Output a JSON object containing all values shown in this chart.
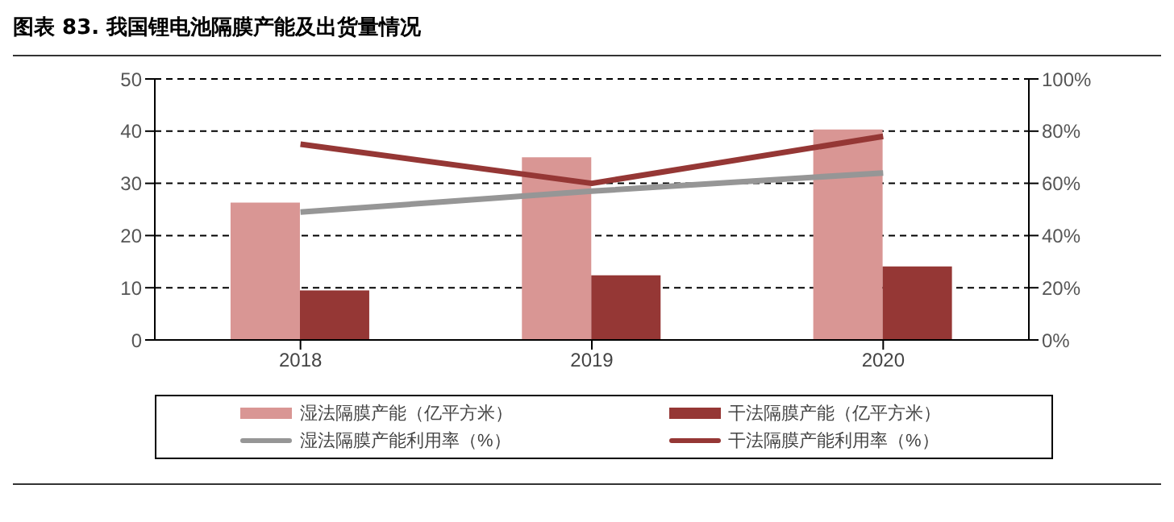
{
  "chart_data": {
    "type": "bar",
    "title": "图表 83. 我国锂电池隔膜产能及出货量情况",
    "categories": [
      "2018",
      "2019",
      "2020"
    ],
    "series": [
      {
        "name": "湿法隔膜产能（亿平方米）",
        "color": "#d99694",
        "values": [
          26.3,
          35,
          40.3
        ]
      },
      {
        "name": "干法隔膜产能（亿平方米）",
        "color": "#953735",
        "values": [
          9.5,
          12.4,
          14.1
        ]
      },
      {
        "name": "湿法隔膜产能利用率（%）",
        "type": "line",
        "axis": "y2",
        "color": "#969696",
        "values": [
          49,
          57,
          64
        ]
      },
      {
        "name": "干法隔膜产能利用率（%）",
        "type": "line",
        "axis": "y2",
        "color": "#953735",
        "values": [
          75,
          60,
          78
        ]
      }
    ],
    "ylim": [
      0,
      50
    ],
    "yticks": [
      0,
      10,
      20,
      30,
      40,
      50
    ],
    "y2lim": [
      0,
      100
    ],
    "y2ticks": [
      {
        "value": 0,
        "label": "0%"
      },
      {
        "value": 20,
        "label": "20%"
      },
      {
        "value": 40,
        "label": "40%"
      },
      {
        "value": 60,
        "label": "60%"
      },
      {
        "value": 80,
        "label": "80%"
      },
      {
        "value": 100,
        "label": "100%"
      }
    ],
    "grid": "y",
    "legend": "bottom",
    "marker": "none",
    "line_style": "solid"
  }
}
